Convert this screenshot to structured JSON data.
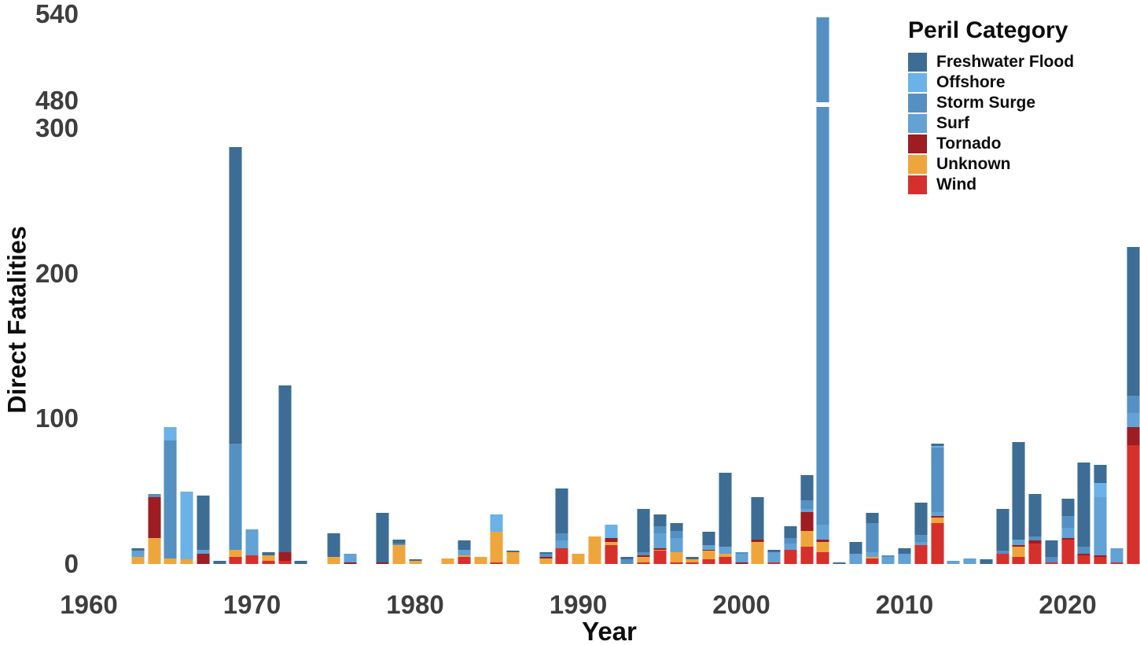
{
  "axes": {
    "y": {
      "title": "Direct Fatalities",
      "ticks": [
        0,
        100,
        200,
        300,
        480,
        540
      ],
      "break": {
        "from": 300,
        "to": 480
      }
    },
    "x": {
      "title": "Year",
      "ticks": [
        1960,
        1970,
        1980,
        1990,
        2000,
        2010,
        2020
      ]
    }
  },
  "legend": {
    "title": "Peril Category",
    "items": [
      {
        "label": "Freshwater Flood",
        "color": "#3d6d94"
      },
      {
        "label": "Offshore",
        "color": "#6ab2e8"
      },
      {
        "label": "Storm Surge",
        "color": "#5590c2"
      },
      {
        "label": "Surf",
        "color": "#62a2d5"
      },
      {
        "label": "Tornado",
        "color": "#9d1d23"
      },
      {
        "label": "Unknown",
        "color": "#eea63c"
      },
      {
        "label": "Wind",
        "color": "#d6302c"
      }
    ]
  },
  "chart_data": {
    "type": "bar",
    "stacked": true,
    "title": "",
    "xlabel": "Year",
    "ylabel": "Direct Fatalities",
    "x_range": [
      1960,
      2024
    ],
    "y_ticks": [
      0,
      100,
      200,
      300,
      480,
      540
    ],
    "y_axis_break": [
      300,
      480
    ],
    "grid": false,
    "legend_position": "top-right",
    "stack_order_bottom_to_top": [
      "Wind",
      "Unknown",
      "Tornado",
      "Surf",
      "Storm Surge",
      "Offshore",
      "Freshwater Flood"
    ],
    "bars": [
      {
        "year": 1963,
        "segments": {
          "Unknown": 5,
          "Surf": 4,
          "Freshwater Flood": 2
        }
      },
      {
        "year": 1964,
        "segments": {
          "Unknown": 18,
          "Tornado": 28,
          "Storm Surge": 2
        }
      },
      {
        "year": 1965,
        "segments": {
          "Unknown": 4,
          "Storm Surge": 81,
          "Offshore": 9
        }
      },
      {
        "year": 1966,
        "segments": {
          "Unknown": 3,
          "Offshore": 47
        }
      },
      {
        "year": 1967,
        "segments": {
          "Tornado": 7,
          "Surf": 3,
          "Freshwater Flood": 37
        }
      },
      {
        "year": 1968,
        "segments": {
          "Freshwater Flood": 2
        }
      },
      {
        "year": 1969,
        "segments": {
          "Wind": 5,
          "Unknown": 5,
          "Storm Surge": 73,
          "Freshwater Flood": 204
        }
      },
      {
        "year": 1970,
        "segments": {
          "Wind": 6,
          "Surf": 18
        }
      },
      {
        "year": 1971,
        "segments": {
          "Wind": 2,
          "Unknown": 4,
          "Freshwater Flood": 2
        }
      },
      {
        "year": 1972,
        "segments": {
          "Wind": 2,
          "Tornado": 6,
          "Freshwater Flood": 115
        }
      },
      {
        "year": 1973,
        "segments": {
          "Freshwater Flood": 2
        }
      },
      {
        "year": 1975,
        "segments": {
          "Unknown": 5,
          "Freshwater Flood": 16
        }
      },
      {
        "year": 1976,
        "segments": {
          "Tornado": 1,
          "Surf": 6
        }
      },
      {
        "year": 1978,
        "segments": {
          "Tornado": 1,
          "Freshwater Flood": 34
        }
      },
      {
        "year": 1979,
        "segments": {
          "Unknown": 13,
          "Storm Surge": 1,
          "Freshwater Flood": 3
        }
      },
      {
        "year": 1980,
        "segments": {
          "Unknown": 2,
          "Freshwater Flood": 1
        }
      },
      {
        "year": 1982,
        "segments": {
          "Unknown": 4
        }
      },
      {
        "year": 1983,
        "segments": {
          "Wind": 5,
          "Unknown": 1,
          "Surf": 4,
          "Freshwater Flood": 6
        }
      },
      {
        "year": 1984,
        "segments": {
          "Unknown": 5
        }
      },
      {
        "year": 1985,
        "segments": {
          "Wind": 1,
          "Unknown": 21,
          "Offshore": 12
        }
      },
      {
        "year": 1986,
        "segments": {
          "Unknown": 8,
          "Freshwater Flood": 1
        }
      },
      {
        "year": 1988,
        "segments": {
          "Unknown": 4,
          "Tornado": 1,
          "Storm Surge": 2,
          "Freshwater Flood": 1
        }
      },
      {
        "year": 1989,
        "segments": {
          "Wind": 11,
          "Surf": 5,
          "Storm Surge": 5,
          "Freshwater Flood": 31
        }
      },
      {
        "year": 1990,
        "segments": {
          "Unknown": 7
        }
      },
      {
        "year": 1991,
        "segments": {
          "Unknown": 19
        }
      },
      {
        "year": 1992,
        "segments": {
          "Wind": 13,
          "Unknown": 2,
          "Tornado": 3,
          "Offshore": 9
        }
      },
      {
        "year": 1993,
        "segments": {
          "Storm Surge": 3,
          "Freshwater Flood": 2
        }
      },
      {
        "year": 1994,
        "segments": {
          "Wind": 1,
          "Unknown": 4,
          "Tornado": 1,
          "Storm Surge": 2,
          "Freshwater Flood": 30
        }
      },
      {
        "year": 1995,
        "segments": {
          "Wind": 9,
          "Unknown": 1,
          "Tornado": 1,
          "Surf": 10,
          "Storm Surge": 5,
          "Freshwater Flood": 8
        }
      },
      {
        "year": 1996,
        "segments": {
          "Wind": 1,
          "Unknown": 7,
          "Surf": 10,
          "Storm Surge": 5,
          "Freshwater Flood": 5
        }
      },
      {
        "year": 1997,
        "segments": {
          "Wind": 1,
          "Unknown": 2,
          "Freshwater Flood": 2
        }
      },
      {
        "year": 1998,
        "segments": {
          "Wind": 3,
          "Unknown": 6,
          "Tornado": 1,
          "Surf": 3,
          "Freshwater Flood": 9
        }
      },
      {
        "year": 1999,
        "segments": {
          "Wind": 5,
          "Unknown": 2,
          "Surf": 5,
          "Freshwater Flood": 51
        }
      },
      {
        "year": 2000,
        "segments": {
          "Tornado": 1,
          "Surf": 6,
          "Storm Surge": 1
        }
      },
      {
        "year": 2001,
        "segments": {
          "Unknown": 15,
          "Tornado": 2,
          "Freshwater Flood": 29
        }
      },
      {
        "year": 2002,
        "segments": {
          "Wind": 1,
          "Surf": 7,
          "Freshwater Flood": 2
        }
      },
      {
        "year": 2003,
        "segments": {
          "Wind": 10,
          "Surf": 4,
          "Storm Surge": 4,
          "Freshwater Flood": 8
        }
      },
      {
        "year": 2004,
        "segments": {
          "Wind": 12,
          "Unknown": 11,
          "Tornado": 13,
          "Surf": 2,
          "Storm Surge": 6,
          "Freshwater Flood": 17
        }
      },
      {
        "year": 2005,
        "segments": {
          "Wind": 8,
          "Unknown": 7,
          "Tornado": 2,
          "Surf": 10,
          "Storm Surge": 511
        }
      },
      {
        "year": 2006,
        "segments": {
          "Freshwater Flood": 1
        }
      },
      {
        "year": 2007,
        "segments": {
          "Surf": 7,
          "Freshwater Flood": 8
        }
      },
      {
        "year": 2008,
        "segments": {
          "Wind": 4,
          "Unknown": 1,
          "Surf": 3,
          "Storm Surge": 20,
          "Freshwater Flood": 7
        }
      },
      {
        "year": 2009,
        "segments": {
          "Surf": 5,
          "Storm Surge": 1
        }
      },
      {
        "year": 2010,
        "segments": {
          "Surf": 7,
          "Freshwater Flood": 4
        }
      },
      {
        "year": 2011,
        "segments": {
          "Wind": 13,
          "Surf": 2,
          "Storm Surge": 5,
          "Freshwater Flood": 22
        }
      },
      {
        "year": 2012,
        "segments": {
          "Wind": 28,
          "Unknown": 4,
          "Tornado": 1,
          "Surf": 3,
          "Storm Surge": 44,
          "Offshore": 1,
          "Freshwater Flood": 2
        }
      },
      {
        "year": 2013,
        "segments": {
          "Surf": 2
        }
      },
      {
        "year": 2014,
        "segments": {
          "Surf": 4
        }
      },
      {
        "year": 2015,
        "segments": {
          "Freshwater Flood": 3
        }
      },
      {
        "year": 2016,
        "segments": {
          "Wind": 7,
          "Storm Surge": 2,
          "Freshwater Flood": 29
        }
      },
      {
        "year": 2017,
        "segments": {
          "Wind": 5,
          "Unknown": 7,
          "Tornado": 1,
          "Surf": 4,
          "Freshwater Flood": 67
        }
      },
      {
        "year": 2018,
        "segments": {
          "Wind": 14,
          "Tornado": 2,
          "Storm Surge": 3,
          "Freshwater Flood": 29
        }
      },
      {
        "year": 2019,
        "segments": {
          "Wind": 1,
          "Storm Surge": 4,
          "Freshwater Flood": 11
        }
      },
      {
        "year": 2020,
        "segments": {
          "Wind": 17,
          "Tornado": 1,
          "Surf": 7,
          "Storm Surge": 8,
          "Freshwater Flood": 12
        }
      },
      {
        "year": 2021,
        "segments": {
          "Wind": 6,
          "Tornado": 1,
          "Storm Surge": 5,
          "Freshwater Flood": 58
        }
      },
      {
        "year": 2022,
        "segments": {
          "Wind": 5,
          "Tornado": 1,
          "Surf": 40,
          "Offshore": 10,
          "Freshwater Flood": 12
        }
      },
      {
        "year": 2023,
        "segments": {
          "Wind": 1,
          "Surf": 10
        }
      },
      {
        "year": 2024,
        "segments": {
          "Wind": 82,
          "Tornado": 12,
          "Surf": 10,
          "Storm Surge": 12,
          "Freshwater Flood": 102
        }
      }
    ]
  }
}
